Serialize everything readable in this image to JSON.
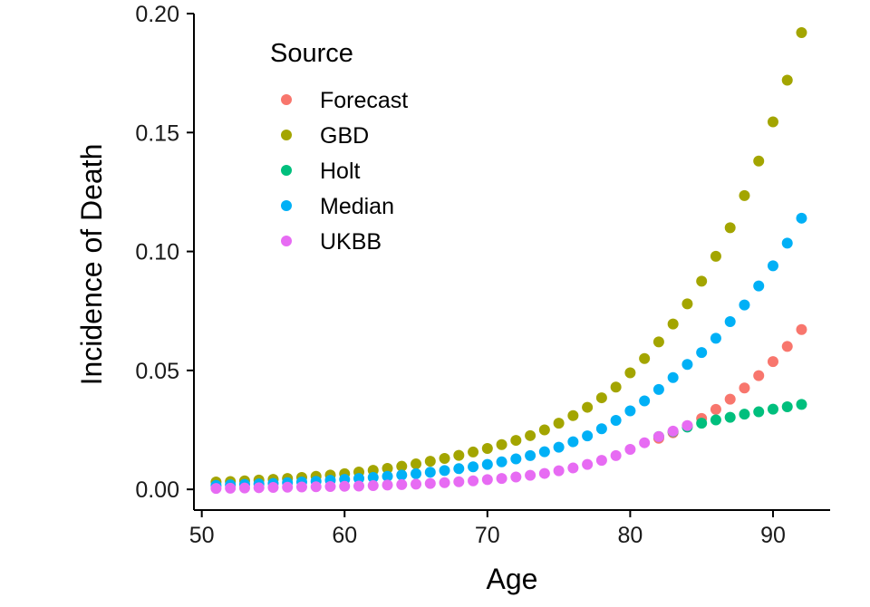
{
  "chart_data": {
    "type": "scatter",
    "xlabel": "Age",
    "ylabel": "Incidence of Death",
    "xlim": [
      49.45,
      94.0
    ],
    "ylim": [
      -0.0087,
      0.2
    ],
    "x_ticks": [
      50,
      60,
      70,
      80,
      90
    ],
    "x_tick_labels": [
      "50",
      "60",
      "70",
      "80",
      "90"
    ],
    "y_ticks": [
      0.0,
      0.05,
      0.1,
      0.15,
      0.2
    ],
    "y_tick_labels": [
      "0.00",
      "0.05",
      "0.10",
      "0.15",
      "0.20"
    ],
    "grid": false,
    "legend": {
      "title": "Source",
      "placement": "top-left",
      "entries": [
        "Forecast",
        "GBD",
        "Holt",
        "Median",
        "UKBB"
      ]
    },
    "series": [
      {
        "name": "Forecast",
        "color": "#F8766D",
        "x": [
          82,
          83,
          84,
          85,
          86,
          87,
          88,
          89,
          90,
          91,
          92
        ],
        "y": [
          0.0215,
          0.0238,
          0.0267,
          0.0298,
          0.0336,
          0.0379,
          0.0426,
          0.0478,
          0.0537,
          0.0601,
          0.0672
        ]
      },
      {
        "name": "GBD",
        "color": "#A3A500",
        "x": [
          51,
          52,
          53,
          54,
          55,
          56,
          57,
          58,
          59,
          60,
          61,
          62,
          63,
          64,
          65,
          66,
          67,
          68,
          69,
          70,
          71,
          72,
          73,
          74,
          75,
          76,
          77,
          78,
          79,
          80,
          81,
          82,
          83,
          84,
          85,
          86,
          87,
          88,
          89,
          90,
          91,
          92
        ],
        "y": [
          0.0031,
          0.0033,
          0.0036,
          0.0039,
          0.0042,
          0.0046,
          0.005,
          0.0055,
          0.006,
          0.0066,
          0.0073,
          0.008,
          0.0088,
          0.0097,
          0.0107,
          0.0118,
          0.013,
          0.0143,
          0.0157,
          0.0172,
          0.0188,
          0.0206,
          0.0226,
          0.025,
          0.0278,
          0.031,
          0.0345,
          0.0385,
          0.043,
          0.049,
          0.055,
          0.062,
          0.0695,
          0.078,
          0.0875,
          0.098,
          0.11,
          0.1235,
          0.138,
          0.1545,
          0.172,
          0.192
        ]
      },
      {
        "name": "Holt",
        "color": "#00BF7D",
        "x": [
          82,
          83,
          84,
          85,
          86,
          87,
          88,
          89,
          90,
          91,
          92
        ],
        "y": [
          0.0222,
          0.0243,
          0.0262,
          0.0278,
          0.0292,
          0.0303,
          0.0316,
          0.0326,
          0.0337,
          0.0347,
          0.0357
        ]
      },
      {
        "name": "Median",
        "color": "#00B0F6",
        "x": [
          51,
          52,
          53,
          54,
          55,
          56,
          57,
          58,
          59,
          60,
          61,
          62,
          63,
          64,
          65,
          66,
          67,
          68,
          69,
          70,
          71,
          72,
          73,
          74,
          75,
          76,
          77,
          78,
          79,
          80,
          81,
          82,
          83,
          84,
          85,
          86,
          87,
          88,
          89,
          90,
          91,
          92
        ],
        "y": [
          0.0017,
          0.0019,
          0.0021,
          0.0023,
          0.0025,
          0.0028,
          0.0031,
          0.0034,
          0.0038,
          0.0042,
          0.0046,
          0.005,
          0.0055,
          0.006,
          0.0066,
          0.0072,
          0.0079,
          0.0087,
          0.0095,
          0.0105,
          0.0116,
          0.0128,
          0.0142,
          0.0158,
          0.0177,
          0.02,
          0.0225,
          0.0255,
          0.029,
          0.033,
          0.0372,
          0.042,
          0.047,
          0.0525,
          0.0575,
          0.0635,
          0.0705,
          0.0775,
          0.0855,
          0.094,
          0.1035,
          0.114
        ]
      },
      {
        "name": "UKBB",
        "color": "#E76BF3",
        "x": [
          51,
          52,
          53,
          54,
          55,
          56,
          57,
          58,
          59,
          60,
          61,
          62,
          63,
          64,
          65,
          66,
          67,
          68,
          69,
          70,
          71,
          72,
          73,
          74,
          75,
          76,
          77,
          78,
          79,
          80,
          81,
          82,
          83,
          84
        ],
        "y": [
          0.0004,
          0.0005,
          0.0006,
          0.0007,
          0.0008,
          0.0009,
          0.001,
          0.0011,
          0.0012,
          0.0013,
          0.0014,
          0.0016,
          0.0018,
          0.002,
          0.0022,
          0.0025,
          0.0028,
          0.0032,
          0.0036,
          0.0041,
          0.0046,
          0.0052,
          0.0059,
          0.0067,
          0.0078,
          0.009,
          0.0105,
          0.0122,
          0.0142,
          0.0168,
          0.0196,
          0.0222,
          0.0245,
          0.0268
        ]
      }
    ]
  }
}
